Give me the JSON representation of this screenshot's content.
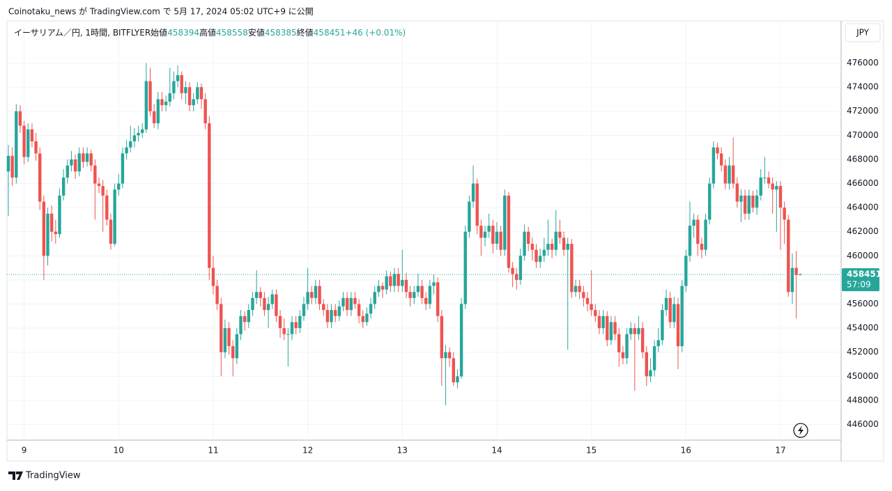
{
  "header": {
    "caption": "Coinotaku_news が TradingView.com で 5月 17, 2024 05:02 UTC+9 に公開"
  },
  "footer": {
    "brand": "TradingView"
  },
  "chart_data": {
    "type": "candlestick",
    "symbol": "イーサリアム／円, 1時間, BITFLYER",
    "legend_labels": [
      "始値",
      "高値",
      "安値",
      "終値"
    ],
    "change_label": "+46 (+0.01%)",
    "currency": "JPY",
    "countdown": "57:09",
    "up_color": "#26a69a",
    "down_color": "#ef5350",
    "grid": true,
    "ylim": [
      444700,
      479500
    ],
    "yticks": [
      446000,
      448000,
      450000,
      452000,
      454000,
      456000,
      458000,
      460000,
      462000,
      464000,
      466000,
      468000,
      470000,
      472000,
      474000,
      476000
    ],
    "categories": [
      null,
      null,
      null,
      null,
      "9",
      null,
      null,
      null,
      null,
      null,
      null,
      null,
      null,
      null,
      null,
      null,
      null,
      null,
      null,
      null,
      null,
      null,
      null,
      null,
      null,
      null,
      null,
      null,
      "10",
      null,
      null,
      null,
      null,
      null,
      null,
      null,
      null,
      null,
      null,
      null,
      null,
      null,
      null,
      null,
      null,
      null,
      null,
      null,
      null,
      null,
      null,
      null,
      "11",
      null,
      null,
      null,
      null,
      null,
      null,
      null,
      null,
      null,
      null,
      null,
      null,
      null,
      null,
      null,
      null,
      null,
      null,
      null,
      null,
      null,
      null,
      null,
      "12",
      null,
      null,
      null,
      null,
      null,
      null,
      null,
      null,
      null,
      null,
      null,
      null,
      null,
      null,
      null,
      null,
      null,
      null,
      null,
      null,
      null,
      null,
      null,
      "13",
      null,
      null,
      null,
      null,
      null,
      null,
      null,
      null,
      null,
      null,
      null,
      null,
      null,
      null,
      null,
      null,
      null,
      null,
      null,
      null,
      null,
      null,
      null,
      "14",
      null,
      null,
      null,
      null,
      null,
      null,
      null,
      null,
      null,
      null,
      null,
      null,
      null,
      null,
      null,
      null,
      null,
      null,
      null,
      null,
      null,
      null,
      null,
      "15",
      null,
      null,
      null,
      null,
      null,
      null,
      null,
      null,
      null,
      null,
      null,
      null,
      null,
      null,
      null,
      null,
      null,
      null,
      null,
      null,
      null,
      null,
      null,
      "16",
      null,
      null,
      null,
      null,
      null,
      null,
      null,
      null,
      null,
      null,
      null,
      null,
      null,
      null,
      null,
      null,
      null,
      null,
      null,
      null,
      null,
      null,
      null,
      "17",
      null,
      null,
      null,
      null,
      null
    ],
    "ohlc": [
      [
        467000,
        469200,
        463300,
        468300
      ],
      [
        468300,
        469000,
        465800,
        466500
      ],
      [
        466500,
        472600,
        466000,
        472000
      ],
      [
        472000,
        472500,
        470200,
        470800
      ],
      [
        470800,
        471200,
        467600,
        468200
      ],
      [
        468200,
        471000,
        467800,
        470500
      ],
      [
        470500,
        471000,
        469000,
        469500
      ],
      [
        469500,
        470200,
        467900,
        468500
      ],
      [
        468500,
        469000,
        463800,
        464500
      ],
      [
        464500,
        465000,
        458000,
        460000
      ],
      [
        460000,
        464000,
        459200,
        463500
      ],
      [
        463500,
        464200,
        461200,
        462000
      ],
      [
        462000,
        463000,
        461000,
        461800
      ],
      [
        461800,
        465600,
        461500,
        465000
      ],
      [
        465000,
        467200,
        464600,
        466500
      ],
      [
        466500,
        468000,
        466000,
        467500
      ],
      [
        467500,
        468700,
        467000,
        468000
      ],
      [
        468000,
        468400,
        466400,
        467000
      ],
      [
        467000,
        469000,
        466600,
        468500
      ],
      [
        468500,
        469000,
        467300,
        467800
      ],
      [
        467800,
        469000,
        467400,
        468500
      ],
      [
        468500,
        468800,
        467000,
        467500
      ],
      [
        467500,
        468000,
        463000,
        466000
      ],
      [
        466000,
        466500,
        465200,
        465800
      ],
      [
        465800,
        466300,
        462000,
        465000
      ],
      [
        465000,
        465500,
        462500,
        463000
      ],
      [
        463000,
        463500,
        460500,
        461000
      ],
      [
        461000,
        466000,
        460800,
        465500
      ],
      [
        465500,
        466800,
        465000,
        466000
      ],
      [
        466000,
        469000,
        465600,
        468500
      ],
      [
        468500,
        469600,
        468000,
        469000
      ],
      [
        469000,
        470800,
        468600,
        469500
      ],
      [
        469500,
        470600,
        469000,
        470000
      ],
      [
        470000,
        470800,
        469500,
        470200
      ],
      [
        470200,
        471000,
        469800,
        470500
      ],
      [
        470500,
        476000,
        470200,
        474500
      ],
      [
        474500,
        475600,
        471600,
        472000
      ],
      [
        472000,
        472600,
        470600,
        471000
      ],
      [
        471000,
        473600,
        470500,
        473000
      ],
      [
        473000,
        473600,
        472000,
        472500
      ],
      [
        472500,
        473300,
        472000,
        472800
      ],
      [
        472800,
        475600,
        472400,
        473500
      ],
      [
        473500,
        475300,
        473000,
        474500
      ],
      [
        474500,
        475800,
        474000,
        475000
      ],
      [
        475000,
        475300,
        473000,
        473500
      ],
      [
        473500,
        474500,
        472600,
        474000
      ],
      [
        474000,
        474400,
        472000,
        472500
      ],
      [
        472500,
        473500,
        472000,
        473000
      ],
      [
        473000,
        474400,
        472600,
        474000
      ],
      [
        474000,
        474300,
        472200,
        473000
      ],
      [
        473000,
        473500,
        470500,
        471000
      ],
      [
        471000,
        471600,
        458000,
        459000
      ],
      [
        459000,
        460000,
        456800,
        457500
      ],
      [
        457500,
        458000,
        455500,
        456000
      ],
      [
        456000,
        456500,
        450000,
        452000
      ],
      [
        452000,
        454700,
        451500,
        454000
      ],
      [
        454000,
        454500,
        451800,
        452500
      ],
      [
        452500,
        453000,
        450000,
        451500
      ],
      [
        451500,
        454000,
        451000,
        453500
      ],
      [
        453500,
        455500,
        453000,
        455000
      ],
      [
        455000,
        455400,
        453800,
        454500
      ],
      [
        454500,
        456000,
        454000,
        455500
      ],
      [
        455500,
        457000,
        455000,
        456500
      ],
      [
        456500,
        458800,
        456000,
        457000
      ],
      [
        457000,
        457400,
        455800,
        456500
      ],
      [
        456500,
        457000,
        455000,
        455500
      ],
      [
        455500,
        456600,
        454000,
        456000
      ],
      [
        456000,
        457200,
        455600,
        456800
      ],
      [
        456800,
        457200,
        454500,
        455000
      ],
      [
        455000,
        455500,
        453200,
        454000
      ],
      [
        454000,
        454800,
        453000,
        453500
      ],
      [
        453500,
        454000,
        450800,
        453500
      ],
      [
        453500,
        455000,
        453000,
        454500
      ],
      [
        454500,
        455000,
        453500,
        454000
      ],
      [
        454000,
        455500,
        453600,
        455000
      ],
      [
        455000,
        456600,
        454600,
        456000
      ],
      [
        456000,
        459000,
        455500,
        457000
      ],
      [
        457000,
        457500,
        456000,
        456500
      ],
      [
        456500,
        458000,
        456000,
        457500
      ],
      [
        457500,
        458000,
        455500,
        456000
      ],
      [
        456000,
        456400,
        455000,
        455500
      ],
      [
        455500,
        456000,
        454000,
        454500
      ],
      [
        454500,
        456000,
        454000,
        455500
      ],
      [
        455500,
        456000,
        454500,
        455000
      ],
      [
        455000,
        456300,
        454600,
        455800
      ],
      [
        455800,
        457000,
        455400,
        456500
      ],
      [
        456500,
        457000,
        455000,
        455500
      ],
      [
        455500,
        457000,
        455000,
        456500
      ],
      [
        456500,
        457000,
        455600,
        456000
      ],
      [
        456000,
        456400,
        454400,
        455000
      ],
      [
        455000,
        455500,
        454000,
        454500
      ],
      [
        454500,
        455700,
        454200,
        455200
      ],
      [
        455200,
        456500,
        454800,
        456000
      ],
      [
        456000,
        457500,
        455600,
        457000
      ],
      [
        457000,
        458000,
        456600,
        457500
      ],
      [
        457500,
        457800,
        456500,
        457200
      ],
      [
        457200,
        458800,
        456800,
        458300
      ],
      [
        458300,
        458700,
        457000,
        457500
      ],
      [
        457500,
        459000,
        457000,
        458500
      ],
      [
        458500,
        459000,
        457000,
        457500
      ],
      [
        457500,
        460500,
        457000,
        458000
      ],
      [
        458000,
        458600,
        456500,
        457000
      ],
      [
        457000,
        457500,
        455800,
        456500
      ],
      [
        456500,
        457500,
        456000,
        457000
      ],
      [
        457000,
        458500,
        456600,
        457500
      ],
      [
        457500,
        458000,
        456000,
        456500
      ],
      [
        456500,
        457000,
        455500,
        456000
      ],
      [
        456000,
        458000,
        455600,
        457500
      ],
      [
        457500,
        458500,
        456800,
        457800
      ],
      [
        457800,
        458200,
        454500,
        455000
      ],
      [
        455000,
        455500,
        449200,
        451500
      ],
      [
        451500,
        452600,
        447600,
        452000
      ],
      [
        452000,
        452400,
        450800,
        451500
      ],
      [
        451500,
        452000,
        449200,
        449500
      ],
      [
        449500,
        450600,
        449000,
        450000
      ],
      [
        450000,
        456500,
        449800,
        456000
      ],
      [
        456000,
        462500,
        455600,
        462000
      ],
      [
        462000,
        465000,
        461500,
        464500
      ],
      [
        464500,
        467500,
        464000,
        466000
      ],
      [
        466000,
        466400,
        461800,
        462500
      ],
      [
        462500,
        463000,
        460000,
        461500
      ],
      [
        461500,
        462500,
        460800,
        462000
      ],
      [
        462000,
        463500,
        461500,
        462500
      ],
      [
        462500,
        463000,
        460200,
        461000
      ],
      [
        461000,
        462800,
        460500,
        462000
      ],
      [
        462000,
        462500,
        460000,
        460500
      ],
      [
        460500,
        465500,
        460000,
        465000
      ],
      [
        465000,
        465300,
        458600,
        459000
      ],
      [
        459000,
        459500,
        457400,
        458500
      ],
      [
        458500,
        459000,
        457200,
        458000
      ],
      [
        458000,
        460600,
        457600,
        460000
      ],
      [
        460000,
        462600,
        459600,
        462000
      ],
      [
        462000,
        462400,
        460400,
        461000
      ],
      [
        461000,
        461500,
        459600,
        460500
      ],
      [
        460500,
        461000,
        459000,
        459500
      ],
      [
        459500,
        460600,
        459000,
        460000
      ],
      [
        460000,
        461500,
        459500,
        460500
      ],
      [
        460500,
        463000,
        460000,
        461000
      ],
      [
        461000,
        461400,
        459800,
        460500
      ],
      [
        460500,
        463800,
        460000,
        462000
      ],
      [
        462000,
        463000,
        461000,
        461500
      ],
      [
        461500,
        462000,
        460000,
        460500
      ],
      [
        460500,
        461500,
        452200,
        461000
      ],
      [
        461000,
        461400,
        456500,
        457000
      ],
      [
        457000,
        458000,
        456600,
        457500
      ],
      [
        457500,
        458000,
        456400,
        457000
      ],
      [
        457000,
        457500,
        455800,
        456500
      ],
      [
        456500,
        457000,
        455400,
        456000
      ],
      [
        456000,
        458800,
        455000,
        455500
      ],
      [
        455500,
        456000,
        454500,
        455000
      ],
      [
        455000,
        455500,
        453500,
        454000
      ],
      [
        454000,
        455500,
        453500,
        455000
      ],
      [
        455000,
        455400,
        452500,
        453000
      ],
      [
        453000,
        455000,
        452600,
        454500
      ],
      [
        454500,
        455000,
        453000,
        453500
      ],
      [
        453500,
        454000,
        450800,
        452000
      ],
      [
        452000,
        452500,
        451000,
        451500
      ],
      [
        451500,
        454000,
        451000,
        453500
      ],
      [
        453500,
        454500,
        453000,
        454000
      ],
      [
        454000,
        454400,
        448800,
        453500
      ],
      [
        453500,
        455000,
        453000,
        454000
      ],
      [
        454000,
        454500,
        451500,
        452000
      ],
      [
        452000,
        452500,
        449200,
        450000
      ],
      [
        450000,
        451500,
        449500,
        450500
      ],
      [
        450500,
        453000,
        450000,
        452500
      ],
      [
        452500,
        454000,
        452000,
        453000
      ],
      [
        453000,
        456000,
        452600,
        455500
      ],
      [
        455500,
        457200,
        455000,
        456500
      ],
      [
        456500,
        457000,
        454000,
        454500
      ],
      [
        454500,
        456600,
        454000,
        456000
      ],
      [
        456000,
        456500,
        450600,
        452500
      ],
      [
        452500,
        458000,
        452000,
        457500
      ],
      [
        457500,
        460500,
        457000,
        460000
      ],
      [
        460000,
        464500,
        459500,
        462500
      ],
      [
        462500,
        463500,
        461500,
        463000
      ],
      [
        463000,
        463400,
        460000,
        461000
      ],
      [
        461000,
        461500,
        459800,
        460500
      ],
      [
        460500,
        463500,
        460000,
        463000
      ],
      [
        463000,
        466500,
        462600,
        466000
      ],
      [
        466000,
        469500,
        465600,
        469000
      ],
      [
        469000,
        469400,
        468000,
        468500
      ],
      [
        468500,
        469000,
        467000,
        467500
      ],
      [
        467500,
        468000,
        465500,
        466000
      ],
      [
        466000,
        468200,
        465500,
        467500
      ],
      [
        467500,
        469800,
        465600,
        466000
      ],
      [
        466000,
        466500,
        464000,
        464500
      ],
      [
        464500,
        465500,
        462800,
        465000
      ],
      [
        465000,
        465500,
        463000,
        463500
      ],
      [
        463500,
        465500,
        463000,
        465000
      ],
      [
        465000,
        465400,
        463600,
        464000
      ],
      [
        464000,
        465500,
        463400,
        465000
      ],
      [
        465000,
        467200,
        464600,
        466500
      ],
      [
        466500,
        468200,
        466000,
        466500
      ],
      [
        466500,
        467000,
        465600,
        466000
      ],
      [
        466000,
        466500,
        463500,
        465500
      ],
      [
        465500,
        466200,
        462000,
        465800
      ],
      [
        465800,
        466200,
        460500,
        464000
      ],
      [
        464000,
        464500,
        461000,
        463000
      ],
      [
        463000,
        463400,
        456600,
        457000
      ],
      [
        457000,
        460200,
        456000,
        459000
      ],
      [
        459000,
        460400,
        454800,
        458405
      ],
      [
        458394,
        458558,
        458385,
        458451
      ]
    ]
  }
}
